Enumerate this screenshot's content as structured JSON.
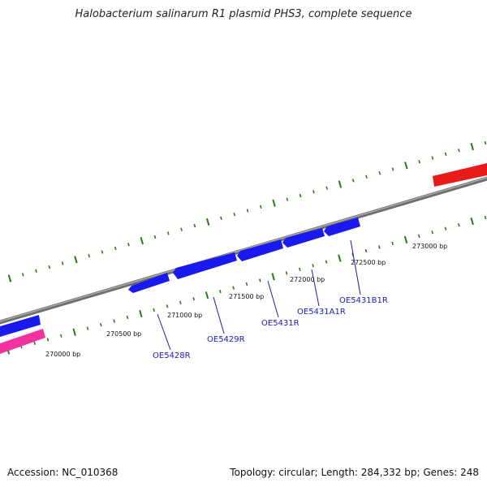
{
  "title": "Halobacterium salinarum R1 plasmid PHS3, complete sequence",
  "footer": {
    "accession": "Accession: NC_010368",
    "summary": "Topology: circular; Length: 284,332 bp; Genes: 248"
  },
  "colors": {
    "backbone": "#808080",
    "forward_gene": "#e81a1a",
    "reverse_gene": "#1a1af0",
    "other_gene": "#f033a0",
    "tick": "#2a7a1a",
    "gene_label": "#1a1ab8"
  },
  "ticks": [
    {
      "label": "270000 bp"
    },
    {
      "label": "270500 bp"
    },
    {
      "label": "271000 bp"
    },
    {
      "label": "271500 bp"
    },
    {
      "label": "272000 bp"
    },
    {
      "label": "272500 bp"
    },
    {
      "label": "273000 bp"
    }
  ],
  "genes": [
    {
      "label": "OE5428R"
    },
    {
      "label": "OE5429R"
    },
    {
      "label": "OE5431R"
    },
    {
      "label": "OE5431A1R"
    },
    {
      "label": "OE5431B1R"
    }
  ]
}
